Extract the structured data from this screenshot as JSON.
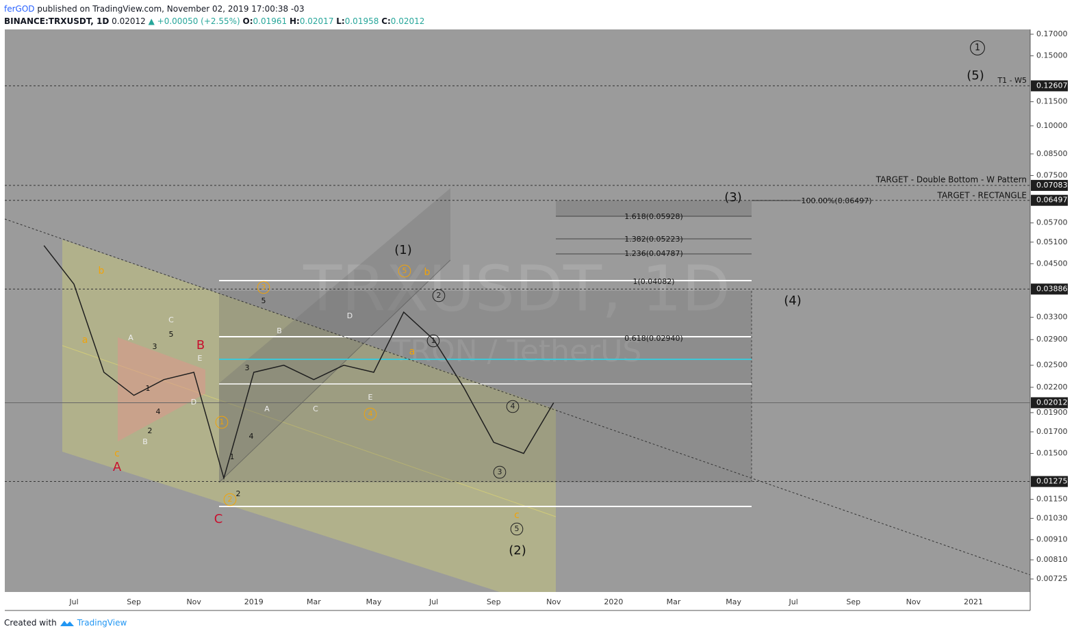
{
  "header": {
    "author": "ferGOD",
    "published": "published on TradingView.com, November 02, 2019 17:00:38 -03",
    "symbol": "BINANCE:TRXUSDT, 1D",
    "last": "0.02012",
    "change": "▲ +0.00050 (+2.55%)",
    "ohlc": [
      {
        "key": "O:",
        "val": "0.01961"
      },
      {
        "key": "H:",
        "val": "0.02017"
      },
      {
        "key": "L:",
        "val": "0.01958"
      },
      {
        "key": "C:",
        "val": "0.02012"
      }
    ]
  },
  "watermark": {
    "title": "TRXUSDT, 1D",
    "subtitle": "TRON / TetherUS"
  },
  "chart_data": {
    "type": "line",
    "log_scale": true,
    "ylim": [
      0.00725,
      0.17
    ],
    "x": [
      "2018-06",
      "2018-07",
      "2018-08",
      "2018-09",
      "2018-10",
      "2018-11",
      "2018-12",
      "2019-01",
      "2019-02",
      "2019-03",
      "2019-04",
      "2019-05",
      "2019-06",
      "2019-07",
      "2019-08",
      "2019-09",
      "2019-10",
      "2019-11"
    ],
    "series": [
      {
        "name": "TRXUSDT",
        "color": "#1e1e1e",
        "values": [
          0.05,
          0.04,
          0.024,
          0.021,
          0.023,
          0.024,
          0.013,
          0.024,
          0.025,
          0.023,
          0.025,
          0.024,
          0.034,
          0.029,
          0.022,
          0.016,
          0.015,
          0.02012
        ]
      }
    ],
    "yticks": [
      {
        "value": 0.17,
        "label": "0.17000"
      },
      {
        "value": 0.15,
        "label": "0.15000"
      },
      {
        "value": 0.115,
        "label": "0.11500"
      },
      {
        "value": 0.1,
        "label": "0.10000"
      },
      {
        "value": 0.085,
        "label": "0.08500"
      },
      {
        "value": 0.075,
        "label": "0.07500"
      },
      {
        "value": 0.057,
        "label": "0.05700"
      },
      {
        "value": 0.051,
        "label": "0.05100"
      },
      {
        "value": 0.045,
        "label": "0.04500"
      },
      {
        "value": 0.033,
        "label": "0.03300"
      },
      {
        "value": 0.029,
        "label": "0.02900"
      },
      {
        "value": 0.025,
        "label": "0.02500"
      },
      {
        "value": 0.022,
        "label": "0.02200"
      },
      {
        "value": 0.019,
        "label": "0.01900"
      },
      {
        "value": 0.017,
        "label": "0.01700"
      },
      {
        "value": 0.015,
        "label": "0.01500"
      },
      {
        "value": 0.0115,
        "label": "0.01150"
      },
      {
        "value": 0.0103,
        "label": "0.01030"
      },
      {
        "value": 0.0091,
        "label": "0.00910"
      },
      {
        "value": 0.0081,
        "label": "0.00810"
      },
      {
        "value": 0.00725,
        "label": "0.00725"
      }
    ],
    "levels": [
      {
        "value": 0.12607,
        "label": "0.12607"
      },
      {
        "value": 0.07083,
        "label": "0.07083"
      },
      {
        "value": 0.06497,
        "label": "0.06497"
      },
      {
        "value": 0.03886,
        "label": "0.03886"
      },
      {
        "value": 0.01275,
        "label": "0.01275"
      }
    ],
    "last_price": {
      "value": 0.02012,
      "label": "0.02012"
    },
    "time_axis": [
      "Jul",
      "Sep",
      "Nov",
      "2019",
      "Mar",
      "May",
      "Jul",
      "Sep",
      "Nov",
      "2020",
      "Mar",
      "May",
      "Jul",
      "Sep",
      "Nov",
      "2021"
    ]
  },
  "annotations": [
    "(1)",
    "(2)",
    "(3)",
    "(4)",
    "(5)",
    "1",
    "T1 - W5",
    "TARGET - Double Bottom - W Pattern",
    "TARGET - RECTANGLE",
    "100.00%(0.06497)",
    "1.618(0.05928)",
    "1.382(0.05223)",
    "1.236(0.04787)",
    "1(0.04082)",
    "0.618(0.02940)",
    "A",
    "B",
    "C",
    "a",
    "b",
    "c",
    "a",
    "b",
    "c",
    "1",
    "2",
    "3",
    "4",
    "5",
    "1",
    "2",
    "3",
    "4",
    "5",
    "3",
    "5",
    "1",
    "4",
    "2",
    "5",
    "3",
    "4",
    "1",
    "2",
    "A",
    "C",
    "E",
    "D",
    "B",
    "B",
    "A",
    "C",
    "D",
    "E"
  ],
  "footer": {
    "created": "Created with",
    "brand": "TradingView"
  }
}
